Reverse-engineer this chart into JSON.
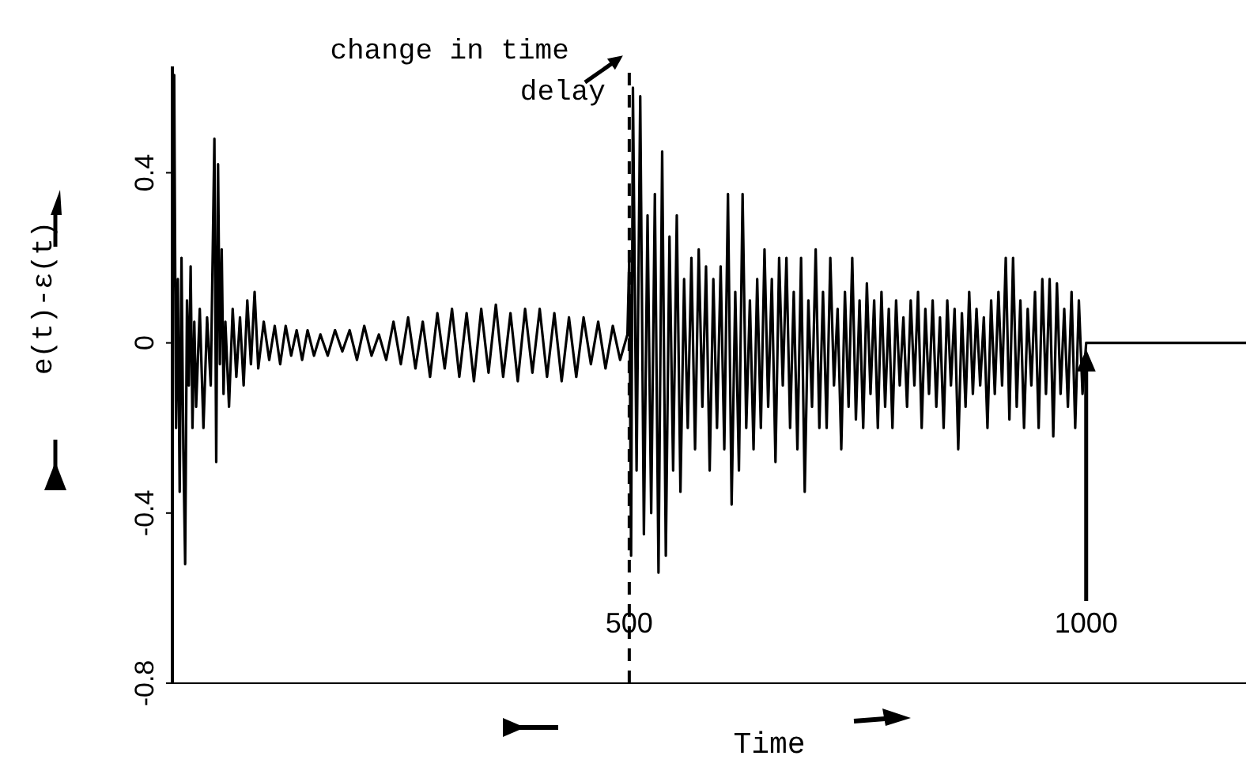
{
  "chart_data": {
    "type": "line",
    "xlabel": "Time",
    "ylabel": "e(t)-ε(t)",
    "ylim": [
      -0.8,
      0.65
    ],
    "xlim": [
      0,
      1175
    ],
    "yticks": [
      0.4,
      0,
      -0.4,
      -0.8
    ],
    "xticks": [
      500,
      1000
    ],
    "x": [
      0,
      2,
      4,
      6,
      8,
      10,
      12,
      14,
      16,
      18,
      20,
      22,
      24,
      26,
      30,
      34,
      38,
      42,
      46,
      48,
      50,
      52,
      54,
      56,
      58,
      62,
      66,
      70,
      74,
      78,
      82,
      86,
      90,
      94,
      100,
      106,
      112,
      118,
      124,
      130,
      136,
      142,
      148,
      155,
      162,
      170,
      178,
      186,
      194,
      202,
      210,
      218,
      226,
      234,
      242,
      250,
      258,
      266,
      274,
      282,
      290,
      298,
      306,
      314,
      322,
      330,
      338,
      346,
      354,
      362,
      370,
      378,
      386,
      394,
      402,
      410,
      418,
      426,
      434,
      442,
      450,
      458,
      466,
      474,
      482,
      490,
      498,
      500,
      502,
      504,
      508,
      512,
      516,
      520,
      524,
      528,
      532,
      536,
      540,
      544,
      548,
      552,
      556,
      560,
      564,
      568,
      572,
      576,
      580,
      584,
      588,
      592,
      596,
      600,
      604,
      608,
      612,
      616,
      620,
      624,
      628,
      632,
      636,
      640,
      644,
      648,
      652,
      656,
      660,
      664,
      668,
      672,
      676,
      680,
      684,
      688,
      692,
      696,
      700,
      704,
      708,
      712,
      716,
      720,
      724,
      728,
      732,
      736,
      740,
      744,
      748,
      752,
      756,
      760,
      764,
      768,
      772,
      776,
      780,
      784,
      788,
      792,
      796,
      800,
      804,
      808,
      812,
      816,
      820,
      824,
      828,
      832,
      836,
      840,
      844,
      848,
      852,
      856,
      860,
      864,
      868,
      872,
      876,
      880,
      884,
      888,
      892,
      896,
      900,
      904,
      908,
      912,
      916,
      920,
      924,
      928,
      932,
      936,
      940,
      944,
      948,
      952,
      956,
      960,
      964,
      968,
      972,
      976,
      980,
      984,
      988,
      992,
      996,
      1000,
      1175
    ],
    "series": [
      {
        "color": "#000000",
        "values": [
          0,
          0.63,
          -0.2,
          0.15,
          -0.35,
          0.2,
          -0.25,
          -0.52,
          0.1,
          -0.1,
          0.18,
          -0.2,
          0.05,
          -0.15,
          0.08,
          -0.2,
          0.06,
          -0.1,
          0.48,
          -0.28,
          0.42,
          -0.05,
          0.22,
          -0.12,
          0.05,
          -0.15,
          0.08,
          -0.08,
          0.06,
          -0.1,
          0.1,
          -0.05,
          0.12,
          -0.06,
          0.05,
          -0.04,
          0.04,
          -0.05,
          0.04,
          -0.03,
          0.03,
          -0.04,
          0.03,
          -0.03,
          0.02,
          -0.03,
          0.03,
          -0.02,
          0.03,
          -0.04,
          0.04,
          -0.03,
          0.02,
          -0.04,
          0.05,
          -0.05,
          0.06,
          -0.06,
          0.05,
          -0.08,
          0.07,
          -0.06,
          0.08,
          -0.08,
          0.07,
          -0.09,
          0.08,
          -0.07,
          0.09,
          -0.08,
          0.07,
          -0.09,
          0.08,
          -0.07,
          0.08,
          -0.08,
          0.07,
          -0.09,
          0.06,
          -0.08,
          0.06,
          -0.05,
          0.05,
          -0.06,
          0.04,
          -0.04,
          0.02,
          0.2,
          -0.5,
          0.6,
          -0.3,
          0.58,
          -0.45,
          0.3,
          -0.4,
          0.35,
          -0.54,
          0.45,
          -0.5,
          0.25,
          -0.3,
          0.3,
          -0.35,
          0.15,
          -0.2,
          0.2,
          -0.25,
          0.22,
          -0.15,
          0.18,
          -0.3,
          0.15,
          -0.2,
          0.18,
          -0.25,
          0.35,
          -0.38,
          0.12,
          -0.3,
          0.35,
          -0.2,
          0.1,
          -0.25,
          0.15,
          -0.2,
          0.22,
          -0.15,
          0.15,
          -0.28,
          0.2,
          -0.1,
          0.2,
          -0.2,
          0.12,
          -0.25,
          0.2,
          -0.35,
          0.1,
          -0.15,
          0.22,
          -0.2,
          0.12,
          -0.2,
          0.2,
          -0.1,
          0.08,
          -0.25,
          0.12,
          -0.15,
          0.2,
          -0.18,
          0.1,
          -0.2,
          0.14,
          -0.12,
          0.1,
          -0.2,
          0.12,
          -0.15,
          0.08,
          -0.2,
          0.1,
          -0.1,
          0.06,
          -0.15,
          0.1,
          -0.1,
          0.12,
          -0.2,
          0.08,
          -0.12,
          0.1,
          -0.15,
          0.06,
          -0.2,
          0.1,
          -0.1,
          0.08,
          -0.25,
          0.07,
          -0.15,
          0.12,
          -0.12,
          0.08,
          -0.1,
          0.06,
          -0.2,
          0.1,
          -0.12,
          0.12,
          -0.1,
          0.2,
          -0.18,
          0.2,
          -0.15,
          0.1,
          -0.2,
          0.08,
          -0.1,
          0.12,
          -0.2,
          0.15,
          -0.12,
          0.15,
          -0.22,
          0.14,
          -0.12,
          0.08,
          -0.15,
          0.12,
          -0.2,
          0.1,
          -0.12,
          0,
          0
        ]
      }
    ],
    "ref_lines": [
      {
        "axis": "x",
        "value": 500,
        "line_style": "dashed"
      }
    ],
    "annotations": [
      {
        "text": "change in time delay",
        "x": 500,
        "y": 0.62
      }
    ]
  }
}
